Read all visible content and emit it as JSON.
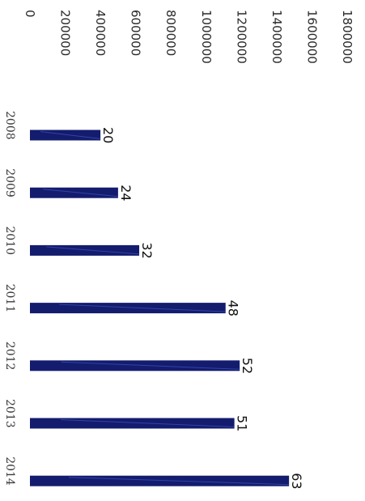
{
  "chart_data": {
    "type": "bar",
    "orientation": "horizontal",
    "rotated": "90deg clockwise",
    "categories": [
      "2008",
      "2009",
      "2010",
      "2011",
      "2012",
      "2013",
      "2014"
    ],
    "values": [
      400000,
      500000,
      620000,
      1110000,
      1190000,
      1160000,
      1470000
    ],
    "data_labels": [
      "20",
      "24",
      "32",
      "48",
      "52",
      "51",
      "63"
    ],
    "xlim": [
      0,
      1800000
    ],
    "x_ticks": [
      "0",
      "200000",
      "400000",
      "600000",
      "800000",
      "1000000",
      "1200000",
      "1400000",
      "1600000",
      "1800000"
    ],
    "grid": false,
    "title": "",
    "xlabel": "",
    "ylabel": ""
  },
  "colors": {
    "bar": "#141c6e",
    "bar_highlight": "#3a4db3",
    "text": "#2a2a2a"
  }
}
